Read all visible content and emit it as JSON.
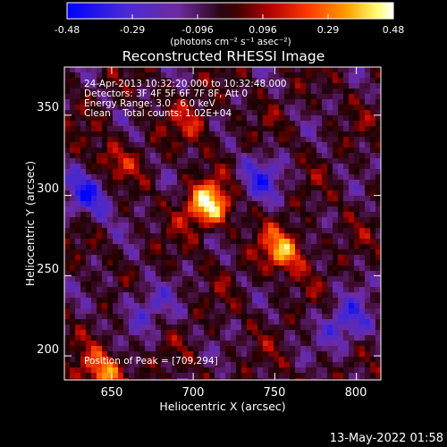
{
  "colorbar": {
    "ticks": [
      "-0.48",
      "-0.29",
      "-0.096",
      "0.096",
      "0.29",
      "0.48"
    ],
    "units": "(photons cm⁻² s⁻¹ asec⁻²)",
    "colors": [
      "#0000ff",
      "#5a2cc8",
      "#6a2a9a",
      "#1a0008",
      "#8a0000",
      "#ff2a00",
      "#ff9a00",
      "#ffff80",
      "#ffffff"
    ]
  },
  "plot": {
    "title": "Reconstructed RHESSI Image",
    "info_lines": [
      "24-Apr-2013 10:32:20.000 to 10:32:48.000",
      "Detectors: 3F 4F 5F 6F 7F 8F, Att 0",
      "Energy Range: 3.0 - 6.0 keV",
      "Clean    Total counts: 1.02E+04"
    ],
    "peak_label": "Position of Peak = [709,294]",
    "xlabel": "Heliocentric X (arcsec)",
    "ylabel": "Heliocentric Y (arcsec)",
    "xticks": [
      "650",
      "700",
      "750",
      "800"
    ],
    "yticks": [
      "200",
      "250",
      "300",
      "350"
    ],
    "xrange": [
      621,
      815
    ],
    "yrange": [
      185,
      380
    ],
    "bright_sources": [
      {
        "x": 709,
        "y": 294,
        "level": 0.48
      },
      {
        "x": 755,
        "y": 265,
        "level": 0.35
      },
      {
        "x": 645,
        "y": 190,
        "level": 0.33
      },
      {
        "x": 650,
        "y": 320,
        "level": 0.2
      },
      {
        "x": 700,
        "y": 345,
        "level": 0.15
      }
    ],
    "dark_sources": [
      {
        "x": 637,
        "y": 300,
        "level": -0.3
      },
      {
        "x": 795,
        "y": 220,
        "level": -0.28
      },
      {
        "x": 740,
        "y": 310,
        "level": -0.22
      },
      {
        "x": 670,
        "y": 230,
        "level": -0.2
      }
    ]
  },
  "footer": {
    "timestamp": "13-May-2022 01:58"
  }
}
